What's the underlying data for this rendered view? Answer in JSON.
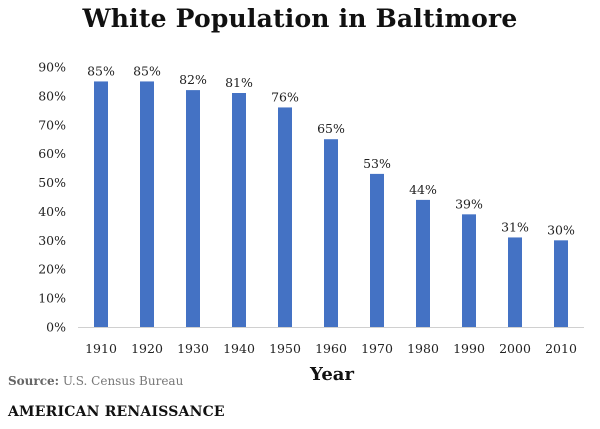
{
  "chart_data": {
    "type": "bar",
    "title": "White Population in Baltimore",
    "xlabel": "Year",
    "ylabel": "",
    "categories": [
      "1910",
      "1920",
      "1930",
      "1940",
      "1950",
      "1960",
      "1970",
      "1980",
      "1990",
      "2000",
      "2010"
    ],
    "values": [
      85,
      85,
      82,
      81,
      76,
      65,
      53,
      44,
      39,
      31,
      30
    ],
    "data_labels": [
      "85%",
      "85%",
      "82%",
      "81%",
      "76%",
      "65%",
      "53%",
      "44%",
      "39%",
      "31%",
      "30%"
    ],
    "yticks": [
      "0%",
      "10%",
      "20%",
      "30%",
      "40%",
      "50%",
      "60%",
      "70%",
      "80%",
      "90%"
    ],
    "ylim": [
      0,
      90
    ],
    "grid": false,
    "bar_color": "#4472C4"
  },
  "footer": {
    "source_label": "Source:",
    "source_text": "U.S. Census Bureau",
    "brand": "AMERICAN RENAISSANCE"
  }
}
